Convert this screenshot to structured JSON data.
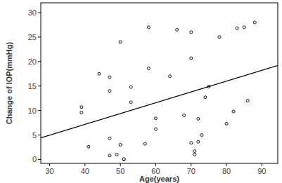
{
  "chart_data": {
    "type": "scatter",
    "x_label": "Age(years)",
    "y_label": "Change of IOP(mmHg)",
    "xlim": [
      27.5,
      94.5
    ],
    "ylim": [
      -0.8,
      32
    ],
    "xticks": [
      30,
      40,
      50,
      60,
      70,
      80,
      90
    ],
    "yticks": [
      0,
      5,
      10,
      15,
      20,
      25,
      30
    ],
    "grid": false,
    "series": [
      {
        "type": "scatter",
        "marker": "open_circle",
        "color": "#000000",
        "x": [
          39,
          39,
          41,
          44,
          47,
          47,
          47,
          47,
          49,
          50,
          50,
          51,
          51,
          53,
          53,
          57,
          58,
          58,
          60,
          60,
          64,
          66,
          68,
          70,
          70,
          70,
          71,
          71,
          72,
          72,
          73,
          74,
          75,
          78,
          80,
          82,
          83,
          85,
          86,
          88
        ],
        "values": [
          10.7,
          9.6,
          2.6,
          17.5,
          16.8,
          14,
          4.3,
          0.8,
          1,
          3,
          24,
          0,
          0.1,
          14.8,
          11.7,
          3.2,
          27,
          18.6,
          8.4,
          6.2,
          17,
          26.5,
          9,
          26,
          20.7,
          3.4,
          1.7,
          1,
          8.3,
          3.6,
          5,
          12.7,
          14.9,
          25,
          7.3,
          9.8,
          26.8,
          27,
          12,
          28
        ]
      },
      {
        "type": "line",
        "line_style": "solid",
        "color": "#000000",
        "x": [
          27.5,
          94.5
        ],
        "values": [
          4.4,
          19.2
        ]
      }
    ]
  }
}
